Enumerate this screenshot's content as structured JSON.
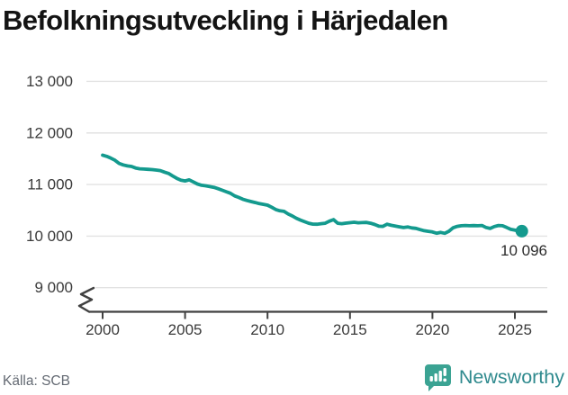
{
  "title": "Befolkningsutveckling i Härjedalen",
  "source": "Källa: SCB",
  "branding": {
    "logo_text": "Newsworthy",
    "logo_icon": "bar-chart-speech-bubble-icon",
    "logo_icon_color": "#3ba393",
    "logo_text_color": "#2f8a8e"
  },
  "chart_data": {
    "type": "line",
    "title": "Befolkningsutveckling i Härjedalen",
    "xlabel": "",
    "ylabel": "",
    "x_ticks": [
      2000,
      2005,
      2010,
      2015,
      2020,
      2025
    ],
    "x_tick_labels": [
      "2000",
      "2005",
      "2010",
      "2015",
      "2020",
      "2025"
    ],
    "y_ticks": [
      9000,
      10000,
      11000,
      12000,
      13000
    ],
    "y_tick_labels": [
      "9 000",
      "10 000",
      "11 000",
      "12 000",
      "13 000"
    ],
    "ylim": [
      8800,
      13400
    ],
    "xlim": [
      1999,
      2027
    ],
    "axis_break": true,
    "grid": true,
    "legend": "none",
    "end_label": "10 096",
    "end_value": 10096,
    "colors": {
      "line": "#149a8e",
      "grid": "#e2e2e2",
      "axis": "#414141",
      "tick_label": "#3a3a3a",
      "end_label": "#2b2b2b"
    },
    "series": [
      {
        "name": "Befolkning i Härjedalen",
        "points": [
          [
            2000.0,
            11570
          ],
          [
            2000.25,
            11545
          ],
          [
            2000.5,
            11510
          ],
          [
            2000.75,
            11470
          ],
          [
            2001.0,
            11410
          ],
          [
            2001.25,
            11380
          ],
          [
            2001.5,
            11360
          ],
          [
            2001.75,
            11350
          ],
          [
            2002.0,
            11320
          ],
          [
            2002.25,
            11305
          ],
          [
            2002.5,
            11300
          ],
          [
            2002.75,
            11295
          ],
          [
            2003.0,
            11290
          ],
          [
            2003.25,
            11280
          ],
          [
            2003.5,
            11270
          ],
          [
            2003.75,
            11240
          ],
          [
            2004.0,
            11215
          ],
          [
            2004.25,
            11165
          ],
          [
            2004.5,
            11120
          ],
          [
            2004.75,
            11085
          ],
          [
            2005.0,
            11070
          ],
          [
            2005.25,
            11090
          ],
          [
            2005.5,
            11050
          ],
          [
            2005.75,
            11010
          ],
          [
            2006.0,
            10985
          ],
          [
            2006.25,
            10975
          ],
          [
            2006.5,
            10960
          ],
          [
            2006.75,
            10945
          ],
          [
            2007.0,
            10920
          ],
          [
            2007.25,
            10890
          ],
          [
            2007.5,
            10860
          ],
          [
            2007.75,
            10830
          ],
          [
            2008.0,
            10780
          ],
          [
            2008.25,
            10750
          ],
          [
            2008.5,
            10715
          ],
          [
            2008.75,
            10690
          ],
          [
            2009.0,
            10670
          ],
          [
            2009.25,
            10650
          ],
          [
            2009.5,
            10630
          ],
          [
            2009.75,
            10615
          ],
          [
            2010.0,
            10600
          ],
          [
            2010.25,
            10560
          ],
          [
            2010.5,
            10515
          ],
          [
            2010.75,
            10490
          ],
          [
            2011.0,
            10480
          ],
          [
            2011.25,
            10430
          ],
          [
            2011.5,
            10390
          ],
          [
            2011.75,
            10345
          ],
          [
            2012.0,
            10310
          ],
          [
            2012.25,
            10280
          ],
          [
            2012.5,
            10250
          ],
          [
            2012.75,
            10232
          ],
          [
            2013.0,
            10230
          ],
          [
            2013.25,
            10240
          ],
          [
            2013.5,
            10250
          ],
          [
            2013.75,
            10290
          ],
          [
            2014.0,
            10320
          ],
          [
            2014.25,
            10250
          ],
          [
            2014.5,
            10240
          ],
          [
            2014.75,
            10252
          ],
          [
            2015.0,
            10260
          ],
          [
            2015.25,
            10268
          ],
          [
            2015.5,
            10258
          ],
          [
            2015.75,
            10262
          ],
          [
            2016.0,
            10265
          ],
          [
            2016.25,
            10250
          ],
          [
            2016.5,
            10225
          ],
          [
            2016.75,
            10192
          ],
          [
            2017.0,
            10188
          ],
          [
            2017.25,
            10230
          ],
          [
            2017.5,
            10210
          ],
          [
            2017.75,
            10195
          ],
          [
            2018.0,
            10180
          ],
          [
            2018.25,
            10165
          ],
          [
            2018.5,
            10178
          ],
          [
            2018.75,
            10158
          ],
          [
            2019.0,
            10150
          ],
          [
            2019.25,
            10125
          ],
          [
            2019.5,
            10105
          ],
          [
            2019.75,
            10092
          ],
          [
            2020.0,
            10080
          ],
          [
            2020.25,
            10055
          ],
          [
            2020.5,
            10072
          ],
          [
            2020.75,
            10054
          ],
          [
            2021.0,
            10095
          ],
          [
            2021.25,
            10160
          ],
          [
            2021.5,
            10188
          ],
          [
            2021.75,
            10200
          ],
          [
            2022.0,
            10205
          ],
          [
            2022.25,
            10200
          ],
          [
            2022.5,
            10204
          ],
          [
            2022.75,
            10200
          ],
          [
            2023.0,
            10205
          ],
          [
            2023.25,
            10168
          ],
          [
            2023.5,
            10148
          ],
          [
            2023.75,
            10185
          ],
          [
            2024.0,
            10205
          ],
          [
            2024.25,
            10200
          ],
          [
            2024.5,
            10168
          ],
          [
            2024.75,
            10130
          ],
          [
            2025.0,
            10115
          ],
          [
            2025.25,
            10106
          ],
          [
            2025.42,
            10096
          ]
        ]
      }
    ]
  }
}
